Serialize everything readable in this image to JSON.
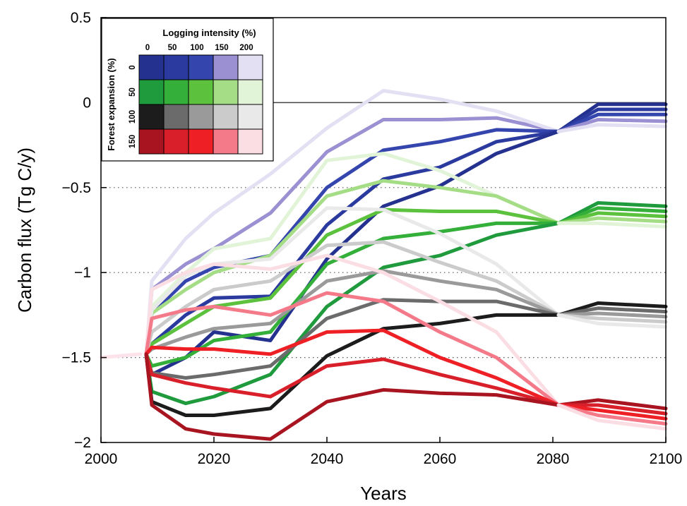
{
  "chart_data": {
    "type": "line",
    "xlabel": "Years",
    "ylabel": "Carbon flux (Tg C/y)",
    "xlim": [
      2000,
      2100
    ],
    "ylim": [
      -2,
      0.5
    ],
    "x_ticks": [
      2000,
      2020,
      2040,
      2060,
      2080,
      2100
    ],
    "x_tick_labels": [
      "2000",
      "2020",
      "2040",
      "2060",
      "2080",
      "2100"
    ],
    "y_ticks": [
      0.5,
      0,
      -0.5,
      -1,
      -1.5,
      -2
    ],
    "y_tick_labels": [
      "0.5",
      "0",
      "−0.5",
      "−1",
      "−1.5",
      "−2"
    ],
    "dotted_gridlines_y": [
      -0.5,
      -1,
      -1.5
    ],
    "reference_line_y": 0,
    "legend": {
      "placement": "top-left",
      "title": "Logging intensity (%)",
      "column_labels": [
        "0",
        "50",
        "100",
        "150",
        "200"
      ],
      "row_title": "Forest expansion (%)",
      "row_labels": [
        "0",
        "50",
        "100",
        "150"
      ],
      "colors": [
        [
          "#24318f",
          "#2b3a9e",
          "#3445ad",
          "#9a90d2",
          "#e4e0f3"
        ],
        [
          "#1f9a3c",
          "#33af3a",
          "#5cc23e",
          "#a4dd86",
          "#e2f4d8"
        ],
        [
          "#1c1c1c",
          "#6b6b6b",
          "#9a9a9a",
          "#cbcbcb",
          "#e9e9e9"
        ],
        [
          "#a8141f",
          "#d81f2a",
          "#ef2025",
          "#f47a8a",
          "#fbdde4"
        ]
      ]
    },
    "historical": {
      "x": [
        2000,
        2007
      ],
      "y": [
        -1.5,
        -1.48
      ],
      "color": "#fce3ea"
    },
    "series": [
      {
        "color": "#9a90d2",
        "x": [
          2008,
          2009,
          2015,
          2020,
          2030,
          2040,
          2050,
          2060,
          2070,
          2081
        ],
        "y": [
          -1.48,
          -1.1,
          -0.95,
          -0.86,
          -0.65,
          -0.29,
          -0.1,
          -0.1,
          -0.09,
          -0.17
        ]
      },
      {
        "color": "#e4e0f3",
        "x": [
          2008,
          2009,
          2015,
          2020,
          2030,
          2040,
          2050,
          2060,
          2070,
          2081
        ],
        "y": [
          -1.48,
          -1.05,
          -0.8,
          -0.65,
          -0.42,
          -0.15,
          0.07,
          0.02,
          -0.05,
          -0.17
        ]
      },
      {
        "color": "#3445ad",
        "x": [
          2008,
          2009,
          2015,
          2020,
          2030,
          2040,
          2050,
          2060,
          2070,
          2081
        ],
        "y": [
          -1.48,
          -1.24,
          -1.05,
          -0.97,
          -0.9,
          -0.5,
          -0.28,
          -0.23,
          -0.16,
          -0.17
        ]
      },
      {
        "color": "#2b3a9e",
        "x": [
          2008,
          2009,
          2015,
          2020,
          2030,
          2040,
          2050,
          2060,
          2070,
          2081
        ],
        "y": [
          -1.48,
          -1.42,
          -1.25,
          -1.15,
          -1.14,
          -0.72,
          -0.45,
          -0.38,
          -0.23,
          -0.17
        ]
      },
      {
        "color": "#24318f",
        "x": [
          2008,
          2009,
          2015,
          2020,
          2030,
          2040,
          2050,
          2060,
          2070,
          2081
        ],
        "y": [
          -1.48,
          -1.6,
          -1.5,
          -1.35,
          -1.4,
          -0.92,
          -0.61,
          -0.49,
          -0.3,
          -0.17
        ]
      },
      {
        "color": "#e2f4d8",
        "x": [
          2008,
          2009,
          2015,
          2020,
          2030,
          2040,
          2050,
          2060,
          2070,
          2081
        ],
        "y": [
          -1.48,
          -1.2,
          -1.0,
          -0.86,
          -0.8,
          -0.34,
          -0.3,
          -0.4,
          -0.55,
          -0.71
        ]
      },
      {
        "color": "#a4dd86",
        "x": [
          2008,
          2009,
          2015,
          2020,
          2030,
          2040,
          2050,
          2060,
          2070,
          2081
        ],
        "y": [
          -1.48,
          -1.24,
          -1.1,
          -1.0,
          -0.9,
          -0.55,
          -0.46,
          -0.5,
          -0.55,
          -0.71
        ]
      },
      {
        "color": "#5cc23e",
        "x": [
          2008,
          2009,
          2015,
          2020,
          2030,
          2040,
          2050,
          2060,
          2070,
          2081
        ],
        "y": [
          -1.48,
          -1.42,
          -1.3,
          -1.2,
          -1.15,
          -0.78,
          -0.63,
          -0.64,
          -0.64,
          -0.71
        ]
      },
      {
        "color": "#33af3a",
        "x": [
          2008,
          2009,
          2015,
          2020,
          2030,
          2040,
          2050,
          2060,
          2070,
          2081
        ],
        "y": [
          -1.48,
          -1.55,
          -1.5,
          -1.4,
          -1.35,
          -0.95,
          -0.8,
          -0.76,
          -0.71,
          -0.71
        ]
      },
      {
        "color": "#1f9a3c",
        "x": [
          2008,
          2009,
          2015,
          2020,
          2030,
          2040,
          2050,
          2060,
          2070,
          2081
        ],
        "y": [
          -1.48,
          -1.7,
          -1.77,
          -1.73,
          -1.6,
          -1.2,
          -0.97,
          -0.9,
          -0.78,
          -0.71
        ]
      },
      {
        "color": "#e9e9e9",
        "x": [
          2008,
          2009,
          2015,
          2020,
          2030,
          2040,
          2050,
          2060,
          2070,
          2081
        ],
        "y": [
          -1.48,
          -1.22,
          -1.02,
          -0.95,
          -0.92,
          -0.62,
          -0.63,
          -0.77,
          -0.95,
          -1.25
        ]
      },
      {
        "color": "#cbcbcb",
        "x": [
          2008,
          2009,
          2015,
          2020,
          2030,
          2040,
          2050,
          2060,
          2070,
          2081
        ],
        "y": [
          -1.48,
          -1.35,
          -1.2,
          -1.1,
          -1.05,
          -0.84,
          -0.82,
          -0.94,
          -1.05,
          -1.25
        ]
      },
      {
        "color": "#9a9a9a",
        "x": [
          2008,
          2009,
          2015,
          2020,
          2030,
          2040,
          2050,
          2060,
          2070,
          2081
        ],
        "y": [
          -1.48,
          -1.45,
          -1.38,
          -1.33,
          -1.3,
          -1.05,
          -0.99,
          -1.05,
          -1.1,
          -1.25
        ]
      },
      {
        "color": "#6b6b6b",
        "x": [
          2008,
          2009,
          2015,
          2020,
          2030,
          2040,
          2050,
          2060,
          2070,
          2081
        ],
        "y": [
          -1.48,
          -1.59,
          -1.62,
          -1.6,
          -1.55,
          -1.27,
          -1.16,
          -1.17,
          -1.17,
          -1.25
        ]
      },
      {
        "color": "#1c1c1c",
        "x": [
          2008,
          2009,
          2015,
          2020,
          2030,
          2040,
          2050,
          2060,
          2070,
          2081
        ],
        "y": [
          -1.48,
          -1.76,
          -1.84,
          -1.84,
          -1.8,
          -1.49,
          -1.33,
          -1.3,
          -1.25,
          -1.25
        ]
      },
      {
        "color": "#fbdde4",
        "x": [
          2008,
          2009,
          2015,
          2020,
          2030,
          2040,
          2050,
          2060,
          2070,
          2081
        ],
        "y": [
          -1.48,
          -1.1,
          -1.0,
          -0.95,
          -0.98,
          -0.9,
          -1.0,
          -1.17,
          -1.35,
          -1.78
        ]
      },
      {
        "color": "#f47a8a",
        "x": [
          2008,
          2009,
          2015,
          2020,
          2030,
          2040,
          2050,
          2060,
          2070,
          2081
        ],
        "y": [
          -1.48,
          -1.27,
          -1.22,
          -1.2,
          -1.25,
          -1.12,
          -1.17,
          -1.35,
          -1.5,
          -1.78
        ]
      },
      {
        "color": "#ef2025",
        "x": [
          2008,
          2009,
          2015,
          2020,
          2030,
          2040,
          2050,
          2060,
          2070,
          2081
        ],
        "y": [
          -1.48,
          -1.44,
          -1.45,
          -1.45,
          -1.48,
          -1.35,
          -1.34,
          -1.5,
          -1.62,
          -1.78
        ]
      },
      {
        "color": "#d81f2a",
        "x": [
          2008,
          2009,
          2015,
          2020,
          2030,
          2040,
          2050,
          2060,
          2070,
          2081
        ],
        "y": [
          -1.48,
          -1.6,
          -1.65,
          -1.68,
          -1.73,
          -1.55,
          -1.51,
          -1.6,
          -1.68,
          -1.78
        ]
      },
      {
        "color": "#a8141f",
        "x": [
          2008,
          2009,
          2015,
          2020,
          2030,
          2040,
          2050,
          2060,
          2070,
          2081
        ],
        "y": [
          -1.48,
          -1.78,
          -1.92,
          -1.95,
          -1.98,
          -1.76,
          -1.69,
          -1.71,
          -1.72,
          -1.78
        ]
      },
      {
        "color": "#24318f",
        "x": [
          2081,
          2088,
          2100
        ],
        "y": [
          -0.17,
          -0.01,
          -0.01
        ]
      },
      {
        "color": "#2b3a9e",
        "x": [
          2081,
          2088,
          2100
        ],
        "y": [
          -0.17,
          -0.04,
          -0.04
        ]
      },
      {
        "color": "#3445ad",
        "x": [
          2081,
          2088,
          2100
        ],
        "y": [
          -0.17,
          -0.07,
          -0.07
        ]
      },
      {
        "color": "#9a90d2",
        "x": [
          2081,
          2088,
          2100
        ],
        "y": [
          -0.17,
          -0.1,
          -0.11
        ]
      },
      {
        "color": "#e4e0f3",
        "x": [
          2081,
          2088,
          2100
        ],
        "y": [
          -0.17,
          -0.13,
          -0.14
        ]
      },
      {
        "color": "#1f9a3c",
        "x": [
          2081,
          2088,
          2100
        ],
        "y": [
          -0.71,
          -0.59,
          -0.61
        ]
      },
      {
        "color": "#33af3a",
        "x": [
          2081,
          2088,
          2100
        ],
        "y": [
          -0.71,
          -0.62,
          -0.64
        ]
      },
      {
        "color": "#5cc23e",
        "x": [
          2081,
          2088,
          2100
        ],
        "y": [
          -0.71,
          -0.65,
          -0.67
        ]
      },
      {
        "color": "#a4dd86",
        "x": [
          2081,
          2088,
          2100
        ],
        "y": [
          -0.71,
          -0.68,
          -0.7
        ]
      },
      {
        "color": "#e2f4d8",
        "x": [
          2081,
          2088,
          2100
        ],
        "y": [
          -0.71,
          -0.71,
          -0.73
        ]
      },
      {
        "color": "#1c1c1c",
        "x": [
          2081,
          2088,
          2100
        ],
        "y": [
          -1.25,
          -1.18,
          -1.2
        ]
      },
      {
        "color": "#6b6b6b",
        "x": [
          2081,
          2088,
          2100
        ],
        "y": [
          -1.25,
          -1.21,
          -1.23
        ]
      },
      {
        "color": "#9a9a9a",
        "x": [
          2081,
          2088,
          2100
        ],
        "y": [
          -1.25,
          -1.24,
          -1.26
        ]
      },
      {
        "color": "#cbcbcb",
        "x": [
          2081,
          2088,
          2100
        ],
        "y": [
          -1.25,
          -1.27,
          -1.29
        ]
      },
      {
        "color": "#e9e9e9",
        "x": [
          2081,
          2088,
          2100
        ],
        "y": [
          -1.25,
          -1.3,
          -1.32
        ]
      },
      {
        "color": "#a8141f",
        "x": [
          2081,
          2088,
          2100
        ],
        "y": [
          -1.78,
          -1.75,
          -1.8
        ]
      },
      {
        "color": "#d81f2a",
        "x": [
          2081,
          2088,
          2100
        ],
        "y": [
          -1.78,
          -1.78,
          -1.83
        ]
      },
      {
        "color": "#ef2025",
        "x": [
          2081,
          2088,
          2100
        ],
        "y": [
          -1.78,
          -1.81,
          -1.86
        ]
      },
      {
        "color": "#f47a8a",
        "x": [
          2081,
          2088,
          2100
        ],
        "y": [
          -1.78,
          -1.84,
          -1.89
        ]
      },
      {
        "color": "#fbdde4",
        "x": [
          2081,
          2088,
          2100
        ],
        "y": [
          -1.78,
          -1.87,
          -1.92
        ]
      }
    ]
  }
}
